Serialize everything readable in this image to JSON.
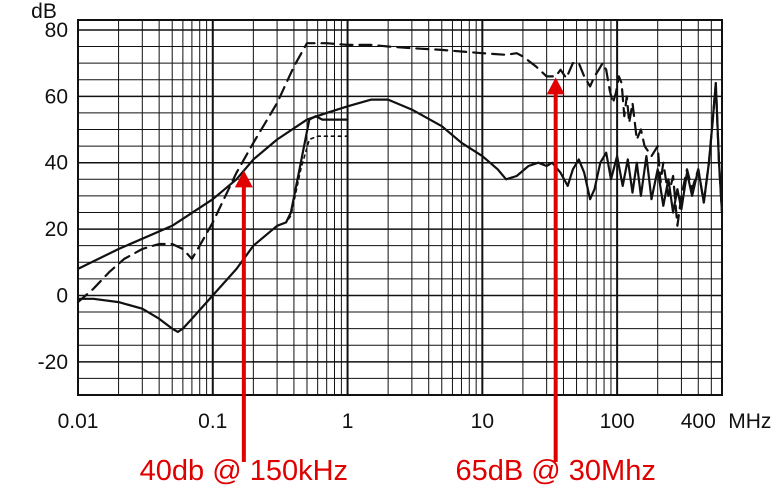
{
  "chart_data": {
    "type": "line",
    "title": "",
    "xscale": "log",
    "xlim": [
      0.01,
      600
    ],
    "ylim": [
      -30,
      83
    ],
    "grid": true,
    "ylabel": "dB",
    "xunit": "MHz",
    "y_ticks": [
      80,
      60,
      40,
      20,
      0,
      -20
    ],
    "y_tick_labels": [
      "80",
      "60",
      "40",
      "20",
      "0",
      "-20"
    ],
    "x_ticks": [
      0.01,
      0.1,
      1,
      10,
      100,
      400
    ],
    "x_tick_labels": [
      "0.01",
      "0.1",
      "1",
      "10",
      "100",
      "400"
    ],
    "series": [
      {
        "style": "dashed",
        "points": [
          [
            0.01,
            -2
          ],
          [
            0.013,
            2
          ],
          [
            0.017,
            7
          ],
          [
            0.022,
            11
          ],
          [
            0.03,
            14
          ],
          [
            0.04,
            15.5
          ],
          [
            0.05,
            15.5
          ],
          [
            0.06,
            14
          ],
          [
            0.07,
            11
          ],
          [
            0.08,
            15
          ],
          [
            0.1,
            22
          ],
          [
            0.15,
            37
          ],
          [
            0.2,
            46
          ],
          [
            0.3,
            58
          ],
          [
            0.4,
            69
          ],
          [
            0.5,
            76
          ],
          [
            0.7,
            76
          ],
          [
            1,
            75.5
          ],
          [
            1.5,
            75.5
          ],
          [
            2,
            75
          ],
          [
            3,
            74.5
          ],
          [
            5,
            74
          ],
          [
            7,
            73.5
          ],
          [
            10,
            73
          ],
          [
            15,
            72.5
          ],
          [
            18,
            73
          ],
          [
            20,
            72
          ],
          [
            25,
            69
          ],
          [
            30,
            66
          ],
          [
            35,
            66
          ],
          [
            38,
            68
          ],
          [
            42,
            65.5
          ],
          [
            47,
            70
          ],
          [
            52,
            70
          ],
          [
            57,
            66
          ],
          [
            63,
            63
          ],
          [
            68,
            66
          ],
          [
            73,
            68
          ],
          [
            78,
            70
          ],
          [
            83,
            68
          ],
          [
            88,
            62
          ],
          [
            93,
            58
          ],
          [
            98,
            61
          ],
          [
            103,
            66
          ],
          [
            108,
            64
          ],
          [
            113,
            54
          ],
          [
            118,
            60
          ],
          [
            123,
            52
          ],
          [
            130,
            58
          ],
          [
            140,
            47
          ],
          [
            150,
            50
          ],
          [
            160,
            45
          ],
          [
            180,
            42
          ],
          [
            200,
            45
          ],
          [
            210,
            34
          ],
          [
            220,
            40
          ],
          [
            240,
            30
          ],
          [
            260,
            36
          ],
          [
            280,
            21
          ],
          [
            300,
            30
          ],
          [
            330,
            38
          ],
          [
            360,
            32
          ],
          [
            400,
            38
          ],
          [
            440,
            28
          ],
          [
            480,
            40
          ],
          [
            510,
            52
          ],
          [
            540,
            64
          ],
          [
            570,
            40
          ],
          [
            600,
            25
          ]
        ]
      },
      {
        "style": "solid",
        "points": [
          [
            0.01,
            8
          ],
          [
            0.02,
            14
          ],
          [
            0.05,
            21
          ],
          [
            0.1,
            29
          ],
          [
            0.15,
            35
          ],
          [
            0.2,
            41
          ],
          [
            0.3,
            47
          ],
          [
            0.5,
            53
          ],
          [
            0.7,
            55
          ],
          [
            1,
            57
          ],
          [
            1.5,
            59
          ],
          [
            2,
            59
          ],
          [
            3,
            56
          ],
          [
            5,
            51
          ],
          [
            7,
            46
          ],
          [
            10,
            42
          ],
          [
            13,
            38
          ],
          [
            15,
            35
          ],
          [
            18,
            36
          ],
          [
            22,
            39
          ],
          [
            26,
            40
          ],
          [
            30,
            39
          ],
          [
            33,
            40
          ],
          [
            38,
            37
          ],
          [
            43,
            33
          ],
          [
            47,
            38
          ],
          [
            52,
            41
          ],
          [
            57,
            37
          ],
          [
            63,
            29
          ],
          [
            68,
            32
          ],
          [
            75,
            40
          ],
          [
            83,
            43
          ],
          [
            90,
            35
          ],
          [
            100,
            42
          ],
          [
            110,
            33
          ],
          [
            120,
            41
          ],
          [
            130,
            31
          ],
          [
            140,
            40
          ],
          [
            150,
            30
          ],
          [
            165,
            42
          ],
          [
            180,
            29
          ],
          [
            200,
            38
          ],
          [
            220,
            27
          ],
          [
            240,
            35
          ],
          [
            260,
            25
          ],
          [
            280,
            32
          ],
          [
            300,
            26
          ],
          [
            330,
            37
          ],
          [
            360,
            30
          ],
          [
            400,
            38
          ],
          [
            440,
            28
          ],
          [
            480,
            40
          ],
          [
            510,
            52
          ],
          [
            540,
            64
          ],
          [
            570,
            40
          ],
          [
            600,
            25
          ]
        ]
      },
      {
        "style": "solid",
        "points": [
          [
            0.01,
            -1
          ],
          [
            0.013,
            -1
          ],
          [
            0.02,
            -2
          ],
          [
            0.03,
            -4
          ],
          [
            0.04,
            -7
          ],
          [
            0.05,
            -10
          ],
          [
            0.055,
            -11
          ],
          [
            0.06,
            -10
          ],
          [
            0.07,
            -7
          ],
          [
            0.1,
            0
          ],
          [
            0.15,
            8
          ],
          [
            0.2,
            15
          ],
          [
            0.3,
            21
          ],
          [
            0.35,
            22
          ],
          [
            0.38,
            25
          ],
          [
            0.45,
            40
          ],
          [
            0.52,
            53
          ],
          [
            0.58,
            54
          ],
          [
            0.65,
            53
          ],
          [
            1,
            53
          ]
        ]
      },
      {
        "style": "dotted",
        "points": [
          [
            0.3,
            21
          ],
          [
            0.35,
            22
          ],
          [
            0.38,
            24
          ],
          [
            0.45,
            38
          ],
          [
            0.52,
            47
          ],
          [
            0.6,
            48
          ],
          [
            0.7,
            48
          ],
          [
            1,
            48
          ]
        ]
      }
    ],
    "annotations": [
      {
        "text": "40db @ 150kHz",
        "x": 0.17,
        "y": 38
      },
      {
        "text": "65dB @ 30Mhz",
        "x": 35,
        "y": 66
      }
    ]
  }
}
